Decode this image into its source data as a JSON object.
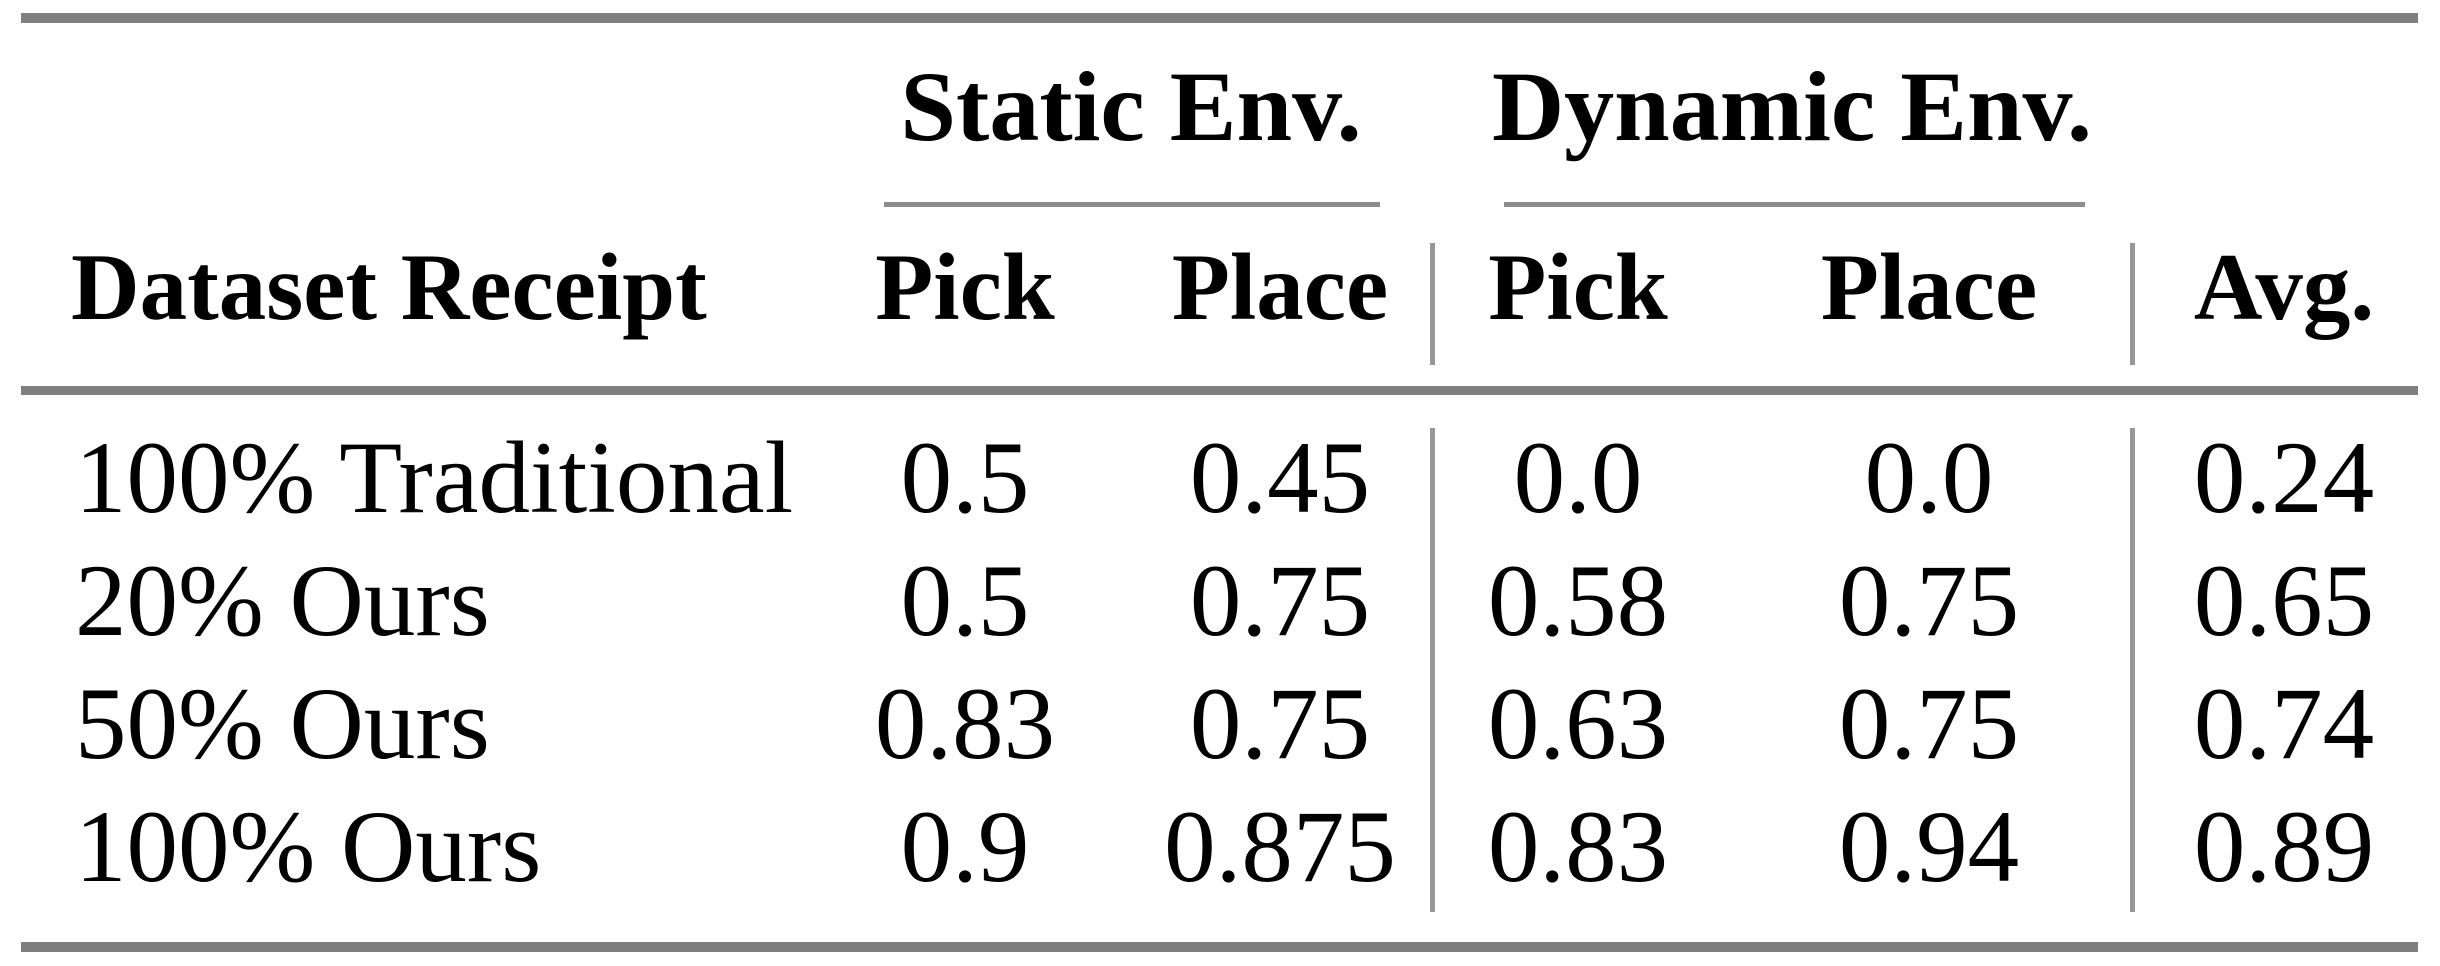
{
  "table": {
    "column_groups": {
      "static_label": "Static Env.",
      "dynamic_label": "Dynamic Env."
    },
    "headers": {
      "dataset": "Dataset Receipt",
      "static_pick": "Pick",
      "static_place": "Place",
      "dynamic_pick": "Pick",
      "dynamic_place": "Place",
      "avg": "Avg."
    },
    "rows": [
      [
        "100% Traditional",
        "0.5",
        "0.45",
        "0.0",
        "0.0",
        "0.24"
      ],
      [
        "20% Ours",
        "0.5",
        "0.75",
        "0.58",
        "0.75",
        "0.65"
      ],
      [
        "50% Ours",
        "0.83",
        "0.75",
        "0.63",
        "0.75",
        "0.74"
      ],
      [
        "100% Ours",
        "0.9",
        "0.875",
        "0.83",
        "0.94",
        "0.89"
      ]
    ]
  },
  "colors": {
    "background": "#ffffff",
    "text": "#000000",
    "rule_thick": "#7f7f7f",
    "rule_thin": "#8d8d8d",
    "rule_vertical": "#979797"
  }
}
